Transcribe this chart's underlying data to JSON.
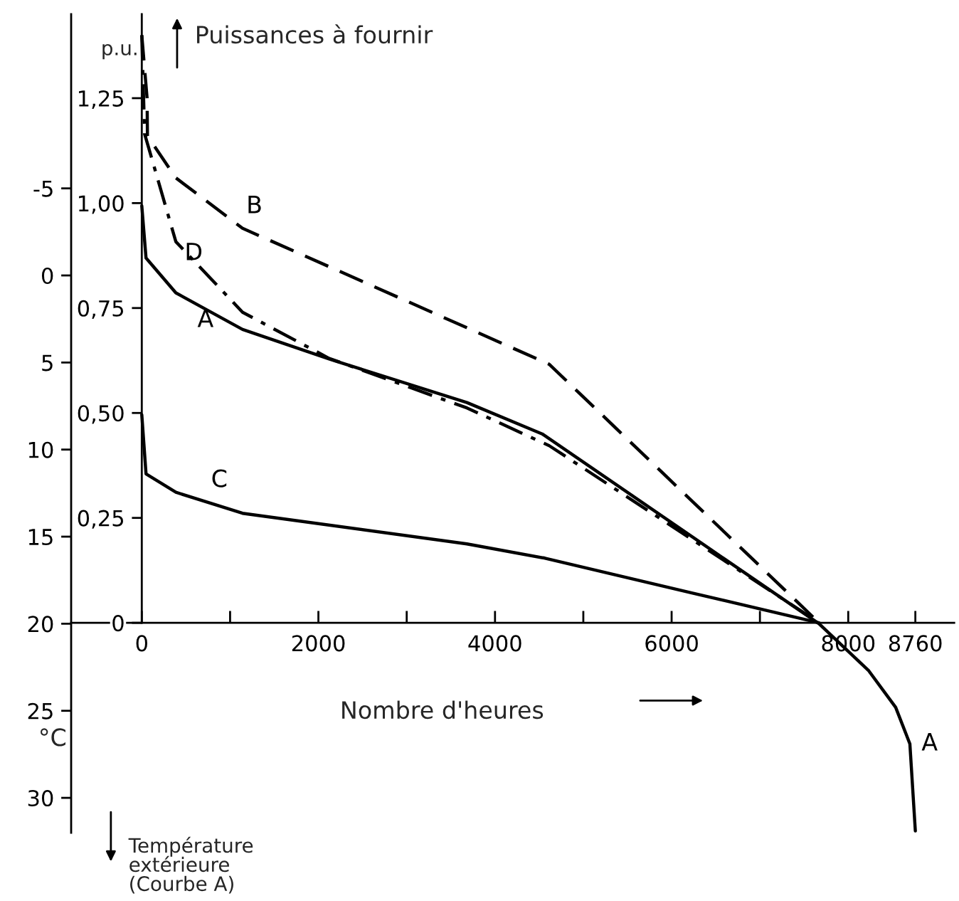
{
  "chart_data": {
    "type": "line",
    "title": "Puissances à fournir",
    "xlabel": "Nombre d'heures",
    "ylabel": "p.u.",
    "y2label": "°C",
    "x": [
      0,
      48,
      386,
      1141,
      2122,
      3682,
      4534,
      7669,
      8232,
      8537,
      8698,
      8760
    ],
    "series": [
      {
        "name": "A",
        "color": "#000000",
        "line_style": "solid",
        "axis": "y2",
        "values": [
          -4.0,
          -1.0,
          1.0,
          3.1,
          4.8,
          7.3,
          9.1,
          20,
          22.7,
          24.8,
          26.9,
          31.9
        ]
      },
      {
        "name": "B",
        "color": "#000000",
        "line_style": "dashed",
        "x": [
          0,
          60,
          64,
          386,
          1141,
          4614,
          7670
        ],
        "values": [
          1.4,
          1.25,
          1.16,
          1.06,
          0.94,
          0.616,
          0
        ]
      },
      {
        "name": "C",
        "color": "#000000",
        "line_style": "solid",
        "x": [
          0,
          48,
          386,
          1141,
          3682,
          4566,
          6254,
          7670
        ],
        "values": [
          0.496,
          0.355,
          0.311,
          0.261,
          0.188,
          0.154,
          0.07,
          0
        ]
      },
      {
        "name": "D",
        "color": "#000000",
        "line_style": "dashdot",
        "x": [
          0,
          32,
          386,
          1141,
          2122,
          3682,
          4614,
          7670
        ],
        "values": [
          1.4,
          1.165,
          0.908,
          0.74,
          0.63,
          0.512,
          0.422,
          0
        ]
      }
    ],
    "xlim": [
      -800,
      9200
    ],
    "xticks": [
      0,
      {
        "value": 1000,
        "label": null
      },
      2000,
      {
        "value": 3000,
        "label": null
      },
      4000,
      {
        "value": 5000,
        "label": null
      },
      6000,
      {
        "value": 7000,
        "label": null
      },
      8000,
      8760
    ],
    "ylim": [
      -0.5,
      1.45
    ],
    "yticks": [
      0,
      {
        "value": 0.25,
        "label": "0,25"
      },
      {
        "value": 0.5,
        "label": "0,50"
      },
      {
        "value": 0.75,
        "label": "0,75"
      },
      {
        "value": 1.0,
        "label": "1,00"
      },
      {
        "value": 1.25,
        "label": "1,25"
      }
    ],
    "y2lim": [
      32,
      -15
    ],
    "y2ticks": [
      -5,
      0,
      5,
      10,
      15,
      20,
      25,
      30
    ],
    "annotations": [
      "Température\nextérieure\n(Courbe A)"
    ]
  }
}
